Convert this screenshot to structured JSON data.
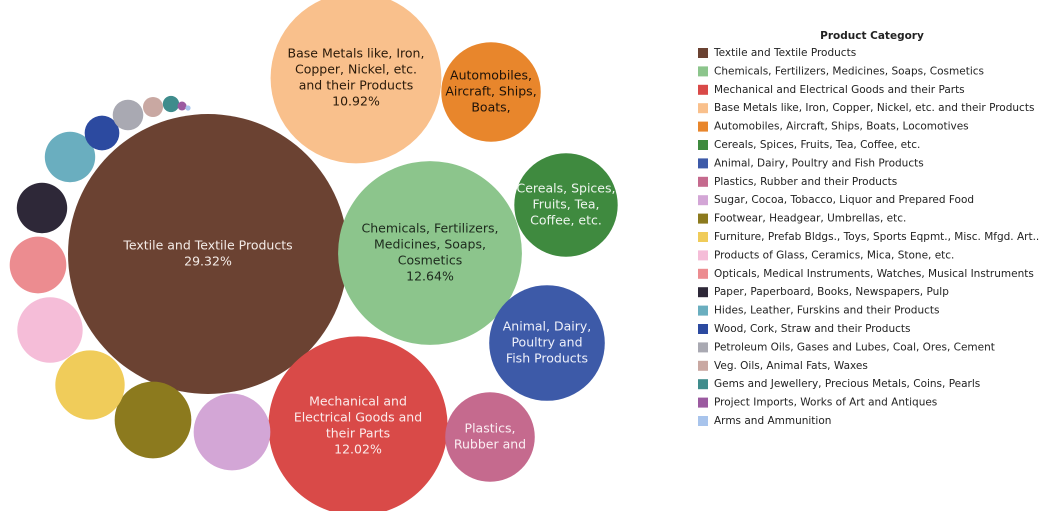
{
  "chart_data": {
    "type": "packed-bubble",
    "legend_title": "Product Category",
    "categories": [
      "Textile and Textile Products",
      "Chemicals, Fertilizers, Medicines, Soaps, Cosmetics",
      "Mechanical and Electrical Goods and their Parts",
      "Base Metals like, Iron, Copper, Nickel, etc. and their Products",
      "Automobiles, Aircraft, Ships, Boats, Locomotives",
      "Cereals, Spices, Fruits, Tea, Coffee, etc.",
      "Animal, Dairy, Poultry and Fish Products",
      "Plastics, Rubber and their Products",
      "Sugar, Cocoa, Tobacco, Liquor and Prepared Food",
      "Footwear, Headgear, Umbrellas, etc.",
      "Furniture, Prefab Bldgs., Toys, Sports Eqpmt., Misc. Mfgd. Art..",
      "Products of Glass, Ceramics, Mica, Stone, etc.",
      "Opticals, Medical Instruments, Watches, Musical Instruments",
      "Paper, Paperboard, Books, Newspapers, Pulp",
      "Hides, Leather, Furskins and their Products",
      "Wood, Cork, Straw and their Products",
      "Petroleum Oils, Gases and Lubes, Coal, Ores, Cement",
      "Veg. Oils, Animal Fats, Waxes",
      "Gems and Jewellery, Precious Metals, Coins, Pearls",
      "Project Imports, Works of Art and Antiques",
      "Arms and Ammunition"
    ],
    "values": [
      29.32,
      12.64,
      12.02,
      10.92,
      3.7,
      4.0,
      5.0,
      3.0,
      2.2,
      2.2,
      1.8,
      1.6,
      1.2,
      0.95,
      0.95,
      0.45,
      0.35,
      0.15,
      0.1,
      0.03,
      0.01
    ],
    "value_labels": [
      "29.32%",
      "12.64%",
      "12.02%",
      "10.92%",
      null,
      null,
      null,
      null,
      null,
      null,
      null,
      null,
      null,
      null,
      null,
      null,
      null,
      null,
      null,
      null,
      null
    ],
    "bubble_labels": [
      [
        "Textile and Textile Products"
      ],
      [
        "Chemicals, Fertilizers,",
        "Medicines, Soaps,",
        "Cosmetics"
      ],
      [
        "Mechanical and",
        "Electrical Goods and",
        "their Parts"
      ],
      [
        "Base Metals like, Iron,",
        "Copper, Nickel, etc.",
        "and their Products"
      ],
      [
        "Automobiles,",
        "Aircraft, Ships,",
        "Boats,"
      ],
      [
        "Cereals, Spices,",
        "Fruits, Tea,",
        "Coffee, etc."
      ],
      [
        "Animal, Dairy,",
        "Poultry and",
        "Fish Products"
      ],
      [
        "Plastics,",
        "Rubber and"
      ],
      null,
      null,
      null,
      null,
      null,
      null,
      null,
      null,
      null,
      null,
      null,
      null,
      null
    ],
    "colors": [
      "#6b4232",
      "#8cc58c",
      "#d94a48",
      "#f9c08c",
      "#e8862c",
      "#3f8a3f",
      "#3d5aa8",
      "#c56a8e",
      "#d3a6d6",
      "#8c7a1e",
      "#f0cc5a",
      "#f5bdd8",
      "#ec8c90",
      "#2e2838",
      "#6aaebf",
      "#2c4aa0",
      "#a9a9b2",
      "#c9a8a2",
      "#3f8c8c",
      "#9b5aa0",
      "#a8c4ec"
    ]
  }
}
